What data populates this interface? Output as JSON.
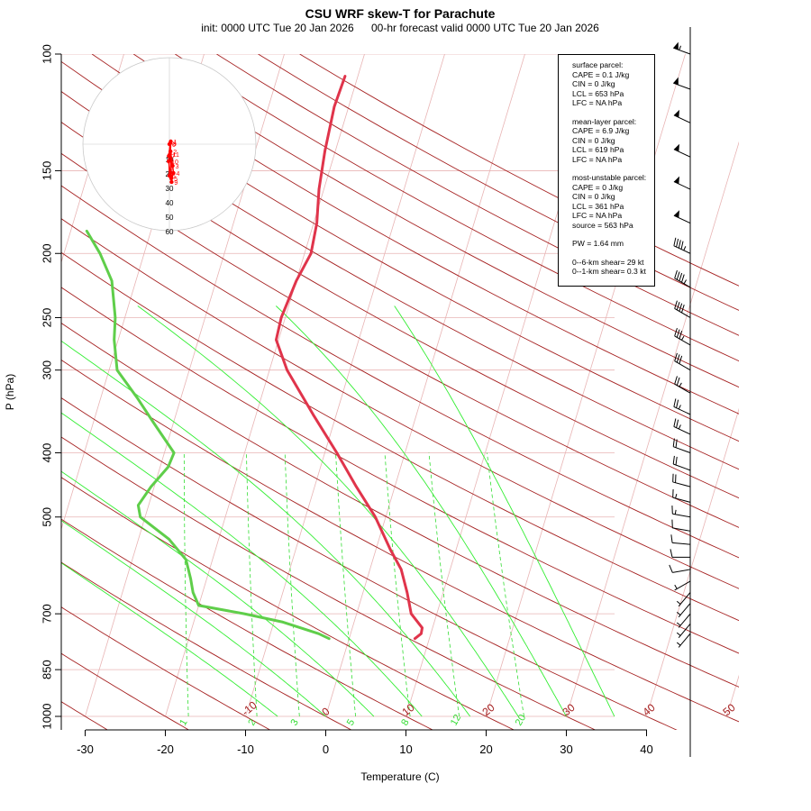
{
  "title": "CSU WRF skew-T for Parachute",
  "subtitle": {
    "init": "init: 0000 UTC  Tue 20 Jan 2026",
    "valid": "00-hr forecast valid 0000 UTC  Tue 20 Jan 2026"
  },
  "info": {
    "surface_header": "surface parcel:",
    "surface_cape": "CAPE = 0.1 J/kg",
    "surface_cin": "CIN = 0 J/kg",
    "surface_lcl": "LCL = 653 hPa",
    "surface_lfc": "LFC = NA hPa",
    "ml_header": "mean-layer parcel:",
    "ml_cape": "CAPE = 6.9 J/kg",
    "ml_cin": "CIN = 0 J/kg",
    "ml_lcl": "LCL = 619 hPa",
    "ml_lfc": "LFC = NA hPa",
    "mu_header": "most-unstable parcel:",
    "mu_cape": "CAPE = 0 J/kg",
    "mu_cin": "CIN = 0 J/kg",
    "mu_lcl": "LCL = 361 hPa",
    "mu_lfc": "LFC = NA hPa",
    "mu_source": "source = 563 hPa",
    "pw": "PW =  1.64 mm",
    "shear_06": "0--6-km shear= 29 kt",
    "shear_01": "0--1-km shear= 0.3 kt"
  },
  "chart_data": {
    "type": "skew-t",
    "xlabel": "Temperature (C)",
    "ylabel": "P (hPa)",
    "colors": {
      "temperature": "#e0344b",
      "dewpoint": "#5fce4a",
      "isotherm_grid": "#e8b4b4",
      "dry_adiabat": "#a52020",
      "moist_adiabat": "#33ee33",
      "mixing_ratio": "#33dd33"
    },
    "x_ticks": [
      -30,
      -20,
      -10,
      0,
      10,
      20,
      30,
      40
    ],
    "p_ticks": [
      100,
      150,
      200,
      250,
      300,
      400,
      500,
      700,
      850,
      1000
    ],
    "isotherm_labels": [
      -10,
      0,
      10,
      20,
      30,
      40,
      50
    ],
    "mixing_ratio_labels": [
      "1",
      "2",
      "3",
      "5",
      "8",
      "12",
      "20"
    ],
    "hodograph_rings": [
      10,
      20,
      30,
      40,
      50,
      60
    ],
    "temperature_profile": [
      {
        "p": 763,
        "t": 8.2
      },
      {
        "p": 750,
        "t": 8.8
      },
      {
        "p": 735,
        "t": 8.7
      },
      {
        "p": 700,
        "t": 6.8
      },
      {
        "p": 650,
        "t": 5.5
      },
      {
        "p": 600,
        "t": 3.9
      },
      {
        "p": 560,
        "t": 1.8
      },
      {
        "p": 500,
        "t": -1.3
      },
      {
        "p": 450,
        "t": -4.8
      },
      {
        "p": 400,
        "t": -8.5
      },
      {
        "p": 350,
        "t": -12.9
      },
      {
        "p": 300,
        "t": -17.8
      },
      {
        "p": 270,
        "t": -20.3
      },
      {
        "p": 250,
        "t": -20.5
      },
      {
        "p": 220,
        "t": -20.0
      },
      {
        "p": 200,
        "t": -19.2
      },
      {
        "p": 180,
        "t": -19.6
      },
      {
        "p": 160,
        "t": -20.6
      },
      {
        "p": 140,
        "t": -21.3
      },
      {
        "p": 120,
        "t": -21.8
      },
      {
        "p": 108,
        "t": -21.6
      }
    ],
    "dewpoint_profile": [
      {
        "p": 763,
        "t": -2.5
      },
      {
        "p": 750,
        "t": -4.0
      },
      {
        "p": 720,
        "t": -9.0
      },
      {
        "p": 700,
        "t": -14.0
      },
      {
        "p": 680,
        "t": -20.0
      },
      {
        "p": 650,
        "t": -21.2
      },
      {
        "p": 620,
        "t": -22.0
      },
      {
        "p": 580,
        "t": -23.3
      },
      {
        "p": 540,
        "t": -26.2
      },
      {
        "p": 500,
        "t": -30.6
      },
      {
        "p": 480,
        "t": -31.3
      },
      {
        "p": 450,
        "t": -30.4
      },
      {
        "p": 420,
        "t": -29.0
      },
      {
        "p": 400,
        "t": -28.8
      },
      {
        "p": 360,
        "t": -32.5
      },
      {
        "p": 330,
        "t": -35.5
      },
      {
        "p": 300,
        "t": -39.0
      },
      {
        "p": 270,
        "t": -40.5
      },
      {
        "p": 250,
        "t": -41.2
      },
      {
        "p": 220,
        "t": -43.0
      },
      {
        "p": 200,
        "t": -45.5
      },
      {
        "p": 185,
        "t": -48.0
      }
    ],
    "winds": [
      {
        "p": 100,
        "speed": 55,
        "dir": 290
      },
      {
        "p": 113,
        "speed": 50,
        "dir": 290
      },
      {
        "p": 127,
        "speed": 50,
        "dir": 295
      },
      {
        "p": 143,
        "speed": 50,
        "dir": 295
      },
      {
        "p": 160,
        "speed": 50,
        "dir": 295
      },
      {
        "p": 180,
        "speed": 50,
        "dir": 295
      },
      {
        "p": 200,
        "speed": 45,
        "dir": 295
      },
      {
        "p": 225,
        "speed": 45,
        "dir": 300
      },
      {
        "p": 250,
        "speed": 40,
        "dir": 300
      },
      {
        "p": 275,
        "speed": 35,
        "dir": 300
      },
      {
        "p": 300,
        "speed": 30,
        "dir": 300
      },
      {
        "p": 325,
        "speed": 25,
        "dir": 300
      },
      {
        "p": 350,
        "speed": 25,
        "dir": 295
      },
      {
        "p": 375,
        "speed": 25,
        "dir": 295
      },
      {
        "p": 400,
        "speed": 20,
        "dir": 290
      },
      {
        "p": 425,
        "speed": 20,
        "dir": 290
      },
      {
        "p": 450,
        "speed": 20,
        "dir": 285
      },
      {
        "p": 475,
        "speed": 15,
        "dir": 285
      },
      {
        "p": 500,
        "speed": 15,
        "dir": 280
      },
      {
        "p": 525,
        "speed": 10,
        "dir": 280
      },
      {
        "p": 550,
        "speed": 10,
        "dir": 275
      },
      {
        "p": 575,
        "speed": 10,
        "dir": 270
      },
      {
        "p": 600,
        "speed": 10,
        "dir": 260
      },
      {
        "p": 625,
        "speed": 5,
        "dir": 240
      },
      {
        "p": 650,
        "speed": 5,
        "dir": 220
      },
      {
        "p": 675,
        "speed": 5,
        "dir": 220
      },
      {
        "p": 700,
        "speed": 5,
        "dir": 220
      },
      {
        "p": 725,
        "speed": 5,
        "dir": 220
      },
      {
        "p": 750,
        "speed": 5,
        "dir": 220
      }
    ],
    "hodograph_points": [
      {
        "label": "0",
        "u": 0,
        "v": 0
      },
      {
        "label": "1",
        "u": 0.5,
        "v": 0.3
      },
      {
        "label": "2",
        "u": 0.4,
        "v": -0.8
      },
      {
        "label": "3",
        "u": 1.2,
        "v": -2.4
      },
      {
        "label": "4",
        "u": 1.5,
        "v": -3.2
      },
      {
        "label": "5",
        "u": 0.7,
        "v": -3.8
      },
      {
        "label": "6",
        "u": 0.0,
        "v": -3.5
      },
      {
        "label": "7",
        "u": -0.2,
        "v": -1.3
      },
      {
        "label": "8",
        "u": 0.3,
        "v": 0.1
      },
      {
        "label": "9",
        "u": 0.8,
        "v": -4.2
      },
      {
        "label": "10",
        "u": -0.3,
        "v": -1.9
      },
      {
        "label": "11",
        "u": 0.2,
        "v": -1.1
      }
    ]
  }
}
